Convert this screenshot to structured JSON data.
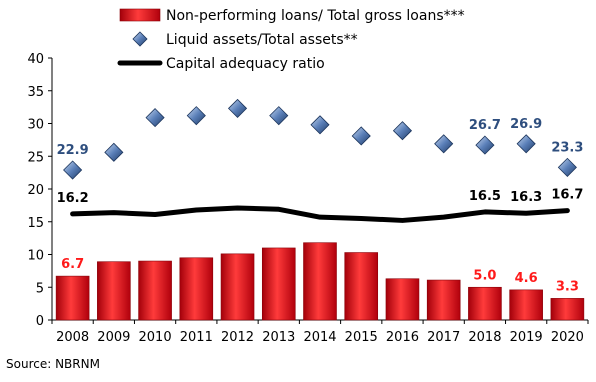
{
  "chart_data": {
    "type": "bar",
    "categories": [
      "2008",
      "2009",
      "2010",
      "2011",
      "2012",
      "2013",
      "2014",
      "2015",
      "2016",
      "2017",
      "2018",
      "2019",
      "2020"
    ],
    "ylim": [
      0,
      40
    ],
    "yticks": [
      "0",
      "5",
      "10",
      "15",
      "20",
      "25",
      "30",
      "35",
      "40"
    ],
    "grid": false,
    "legend_position": "top",
    "series": [
      {
        "name": "Non-performing loans/ Total gross loans***",
        "kind": "bar",
        "color": "#e8101c",
        "label_color": "#ff1a1a",
        "values": [
          6.7,
          8.9,
          9.0,
          9.5,
          10.1,
          11.0,
          11.8,
          10.3,
          6.3,
          6.1,
          5.0,
          4.6,
          3.3
        ],
        "labels": [
          {
            "i": 0,
            "text": "6.7"
          },
          {
            "i": 10,
            "text": "5.0"
          },
          {
            "i": 11,
            "text": "4.6"
          },
          {
            "i": 12,
            "text": "3.3"
          }
        ]
      },
      {
        "name": "Liquid assets/Total assets**",
        "kind": "scatter",
        "color": "#3a5f96",
        "label_color": "#2e4e7e",
        "values": [
          22.9,
          25.6,
          30.9,
          31.2,
          32.3,
          31.2,
          29.8,
          28.1,
          28.9,
          26.9,
          26.7,
          26.9,
          23.3
        ],
        "labels": [
          {
            "i": 0,
            "text": "22.9"
          },
          {
            "i": 10,
            "text": "26.7"
          },
          {
            "i": 11,
            "text": "26.9"
          },
          {
            "i": 12,
            "text": "23.3"
          }
        ]
      },
      {
        "name": "Capital adequacy ratio",
        "kind": "line",
        "color": "#000000",
        "label_color": "#000000",
        "values": [
          16.2,
          16.4,
          16.1,
          16.8,
          17.1,
          16.9,
          15.7,
          15.5,
          15.2,
          15.7,
          16.5,
          16.3,
          16.7
        ],
        "labels": [
          {
            "i": 0,
            "text": "16.2"
          },
          {
            "i": 10,
            "text": "16.5"
          },
          {
            "i": 11,
            "text": "16.3"
          },
          {
            "i": 12,
            "text": "16.7"
          }
        ]
      }
    ],
    "source": "Source: NBRNM"
  }
}
